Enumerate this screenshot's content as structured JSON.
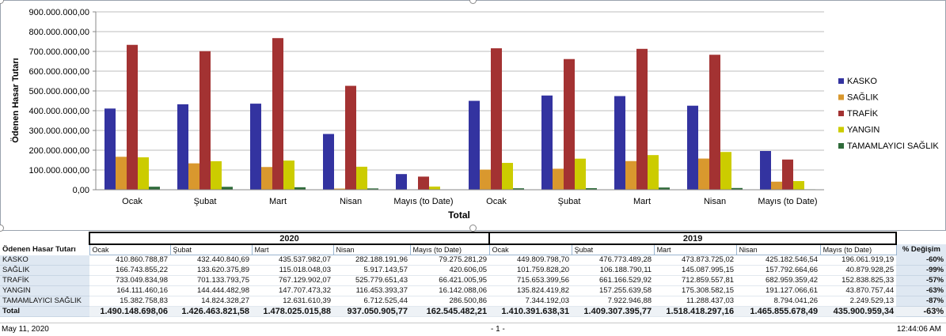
{
  "chart_data": {
    "type": "bar",
    "ylabel": "Ödenen Hasar Tutarı",
    "xlabel": "Total",
    "ylim": [
      0,
      900000000
    ],
    "ytick_values": [
      0,
      100000000,
      200000000,
      300000000,
      400000000,
      500000000,
      600000000,
      700000000,
      800000000,
      900000000
    ],
    "ytick_labels": [
      "0,00",
      "100.000.000,00",
      "200.000.000,00",
      "300.000.000,00",
      "400.000.000,00",
      "500.000.000,00",
      "600.000.000,00",
      "700.000.000,00",
      "800.000.000,00",
      "900.000.000,00"
    ],
    "groups": [
      "2020",
      "2019"
    ],
    "categories": [
      "Ocak",
      "Şubat",
      "Mart",
      "Nisan",
      "Mayıs (to Date)",
      "Ocak",
      "Şubat",
      "Mart",
      "Nisan",
      "Mayıs (to Date)"
    ],
    "legend_position": "right",
    "series": [
      {
        "name": "KASKO",
        "color": "#3333a0",
        "values": [
          410860788.87,
          432440840.69,
          435537982.07,
          282188191.96,
          79275281.29,
          449809798.7,
          476773489.28,
          473873725.02,
          425182546.54,
          196061919.19
        ]
      },
      {
        "name": "SAĞLIK",
        "color": "#d9982e",
        "values": [
          166743855.22,
          133620375.89,
          115018048.03,
          5917143.57,
          420606.05,
          101759828.2,
          106188790.11,
          145087995.15,
          157792664.66,
          40879928.25
        ]
      },
      {
        "name": "TRAFİK",
        "color": "#a33232",
        "values": [
          733049834.98,
          701133793.75,
          767129902.07,
          525779651.43,
          66421005.95,
          715653399.56,
          661166529.92,
          712859557.81,
          682959359.42,
          152838825.33
        ]
      },
      {
        "name": "YANGIN",
        "color": "#cccc00",
        "values": [
          164111460.16,
          144444482.98,
          147707473.32,
          116453393.37,
          16142088.06,
          135824419.82,
          157255639.58,
          175308582.15,
          191127066.61,
          43870757.44
        ]
      },
      {
        "name": "TAMAMLAYICI SAĞLIK",
        "color": "#2f6b3a",
        "values": [
          15382758.83,
          14824328.27,
          12631610.39,
          6712525.44,
          286500.86,
          7344192.03,
          7922946.88,
          11288437.03,
          8794041.26,
          2249529.13
        ]
      }
    ]
  },
  "table": {
    "corner_label": "Ödenen Hasar Tutarı",
    "year_2020": "2020",
    "year_2019": "2019",
    "month_headers": [
      "Ocak",
      "Şubat",
      "Mart",
      "Nisan",
      "Mayıs (to Date)",
      "Ocak",
      "Şubat",
      "Mart",
      "Nisan",
      "Mayıs (to Date)"
    ],
    "pct_header": "% Değişim",
    "rows": [
      {
        "label": "KASKO",
        "values": [
          "410.860.788,87",
          "432.440.840,69",
          "435.537.982,07",
          "282.188.191,96",
          "79.275.281,29",
          "449.809.798,70",
          "476.773.489,28",
          "473.873.725,02",
          "425.182.546,54",
          "196.061.919,19"
        ],
        "pct": "-60%"
      },
      {
        "label": "SAĞLIK",
        "values": [
          "166.743.855,22",
          "133.620.375,89",
          "115.018.048,03",
          "5.917.143,57",
          "420.606,05",
          "101.759.828,20",
          "106.188.790,11",
          "145.087.995,15",
          "157.792.664,66",
          "40.879.928,25"
        ],
        "pct": "-99%"
      },
      {
        "label": "TRAFİK",
        "values": [
          "733.049.834,98",
          "701.133.793,75",
          "767.129.902,07",
          "525.779.651,43",
          "66.421.005,95",
          "715.653.399,56",
          "661.166.529,92",
          "712.859.557,81",
          "682.959.359,42",
          "152.838.825,33"
        ],
        "pct": "-57%"
      },
      {
        "label": "YANGIN",
        "values": [
          "164.111.460,16",
          "144.444.482,98",
          "147.707.473,32",
          "116.453.393,37",
          "16.142.088,06",
          "135.824.419,82",
          "157.255.639,58",
          "175.308.582,15",
          "191.127.066,61",
          "43.870.757,44"
        ],
        "pct": "-63%"
      },
      {
        "label": "TAMAMLAYICI SAĞLIK",
        "values": [
          "15.382.758,83",
          "14.824.328,27",
          "12.631.610,39",
          "6.712.525,44",
          "286.500,86",
          "7.344.192,03",
          "7.922.946,88",
          "11.288.437,03",
          "8.794.041,26",
          "2.249.529,13"
        ],
        "pct": "-87%"
      }
    ],
    "total": {
      "label": "Total",
      "values": [
        "1.490.148.698,06",
        "1.426.463.821,58",
        "1.478.025.015,88",
        "937.050.905,77",
        "162.545.482,21",
        "1.410.391.638,31",
        "1.409.307.395,77",
        "1.518.418.297,16",
        "1.465.855.678,49",
        "435.900.959,34"
      ],
      "pct": "-63%"
    }
  },
  "footer": {
    "date": "May 11, 2020",
    "page": "- 1 -",
    "time": "12:44:06 AM"
  }
}
